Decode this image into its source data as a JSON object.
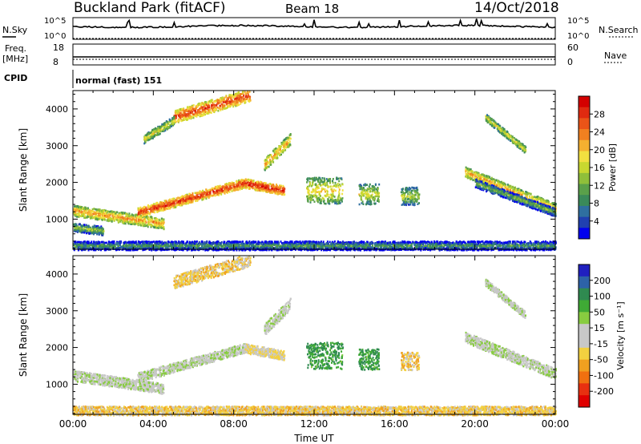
{
  "header": {
    "site": "Buckland Park (fitACF)",
    "beam": "Beam 18",
    "date": "14/Oct/2018"
  },
  "top_panels": {
    "nsky_label": "N.Sky",
    "nsearch_label": "N.Search",
    "noise_ticks": [
      "10^5",
      "10^0"
    ],
    "freq_label_1": "Freq.",
    "freq_label_2": "[MHz]",
    "freq_ticks": [
      "18",
      "8"
    ],
    "nave_label": "Nave",
    "nave_ticks": [
      "60",
      "0"
    ],
    "cpid_label": "CPID",
    "cpid_text": "normal (fast) 151"
  },
  "colorbars": {
    "power": {
      "label": "Power [dB]",
      "ticks": [
        "28",
        "24",
        "20",
        "16",
        "12",
        "8",
        "4"
      ],
      "colors": [
        "#0000ee",
        "#2040b0",
        "#2f6fa0",
        "#3a8a5a",
        "#5aa04a",
        "#8fbf3a",
        "#c8d830",
        "#f2e040",
        "#f5b030",
        "#f08020",
        "#ea5418",
        "#e02a10",
        "#d40000"
      ]
    },
    "velocity": {
      "label": "Velocity [m s⁻¹]",
      "ticks": [
        "200",
        "100",
        "50",
        "15",
        "-15",
        "-50",
        "-100",
        "-200"
      ],
      "colors": [
        "#2020c0",
        "#2d62a8",
        "#2f8a50",
        "#3faa35",
        "#88cc40",
        "#c8c8c8",
        "#c8c8c8",
        "#f2d040",
        "#f0a020",
        "#f07010",
        "#e83010",
        "#e00000"
      ]
    }
  },
  "chart_data": [
    {
      "type": "heatmap",
      "title": "Power",
      "xlabel": "",
      "ylabel": "Slant Range [km]",
      "xlim_ut_hours": [
        0,
        24
      ],
      "ylim_km": [
        180,
        4500
      ],
      "x_tick_labels": [
        "00:00",
        "04:00",
        "08:00",
        "12:00",
        "16:00",
        "20:00",
        "00:00"
      ],
      "y_tick_labels": [
        "1000",
        "2000",
        "3000",
        "4000"
      ],
      "colorscale": "power_db",
      "echo_bands": [
        {
          "t0": 0.0,
          "t1": 4.5,
          "r0": 1250,
          "r1": 900,
          "w": 180,
          "v": 18
        },
        {
          "t0": 0.0,
          "t1": 1.5,
          "r0": 800,
          "r1": 700,
          "w": 150,
          "v": 10
        },
        {
          "t0": 3.2,
          "t1": 8.5,
          "r0": 1200,
          "r1": 2000,
          "w": 160,
          "v": 24
        },
        {
          "t0": 8.5,
          "t1": 10.5,
          "r0": 2000,
          "r1": 1800,
          "w": 160,
          "v": 25
        },
        {
          "t0": 9.5,
          "t1": 10.8,
          "r0": 2500,
          "r1": 3200,
          "w": 200,
          "v": 18
        },
        {
          "t0": 5.0,
          "t1": 8.8,
          "r0": 3800,
          "r1": 4400,
          "w": 220,
          "v": 23
        },
        {
          "t0": 3.5,
          "t1": 5.0,
          "r0": 3200,
          "r1": 3700,
          "w": 150,
          "v": 14
        },
        {
          "t0": 11.6,
          "t1": 13.4,
          "r0": 1800,
          "r1": 1800,
          "w": 450,
          "v": 15
        },
        {
          "t0": 14.2,
          "t1": 15.2,
          "r0": 1700,
          "r1": 1700,
          "w": 350,
          "v": 13
        },
        {
          "t0": 16.3,
          "t1": 17.2,
          "r0": 1650,
          "r1": 1650,
          "w": 300,
          "v": 11
        },
        {
          "t0": 19.5,
          "t1": 24.0,
          "r0": 2300,
          "r1": 1300,
          "w": 180,
          "v": 17
        },
        {
          "t0": 20.0,
          "t1": 24.0,
          "r0": 2000,
          "r1": 1200,
          "w": 140,
          "v": 8
        },
        {
          "t0": 20.5,
          "t1": 22.5,
          "r0": 3800,
          "r1": 2900,
          "w": 120,
          "v": 14
        },
        {
          "t0": 0.0,
          "t1": 24.0,
          "r0": 300,
          "r1": 300,
          "w": 150,
          "v": 6
        }
      ]
    },
    {
      "type": "heatmap",
      "title": "Velocity",
      "xlabel": "Time UT",
      "ylabel": "Slant Range [km]",
      "xlim_ut_hours": [
        0,
        24
      ],
      "ylim_km": [
        180,
        4500
      ],
      "x_tick_labels": [
        "00:00",
        "04:00",
        "08:00",
        "12:00",
        "16:00",
        "20:00",
        "00:00"
      ],
      "y_tick_labels": [
        "1000",
        "2000",
        "3000",
        "4000"
      ],
      "colorscale": "velocity_ms",
      "echo_bands": [
        {
          "t0": 0.0,
          "t1": 4.5,
          "r0": 1250,
          "r1": 900,
          "w": 180,
          "v": 0
        },
        {
          "t0": 3.2,
          "t1": 8.5,
          "r0": 1200,
          "r1": 2000,
          "w": 160,
          "v": 0
        },
        {
          "t0": 8.5,
          "t1": 10.5,
          "r0": 2000,
          "r1": 1800,
          "w": 160,
          "v": -20
        },
        {
          "t0": 9.5,
          "t1": 10.8,
          "r0": 2500,
          "r1": 3200,
          "w": 200,
          "v": 0
        },
        {
          "t0": 5.0,
          "t1": 8.8,
          "r0": 3800,
          "r1": 4400,
          "w": 220,
          "v": -30
        },
        {
          "t0": 11.6,
          "t1": 13.4,
          "r0": 1800,
          "r1": 1800,
          "w": 450,
          "v": 40
        },
        {
          "t0": 14.2,
          "t1": 15.2,
          "r0": 1700,
          "r1": 1700,
          "w": 350,
          "v": 40
        },
        {
          "t0": 16.3,
          "t1": 17.2,
          "r0": 1650,
          "r1": 1650,
          "w": 300,
          "v": -30
        },
        {
          "t0": 19.5,
          "t1": 24.0,
          "r0": 2300,
          "r1": 1300,
          "w": 180,
          "v": 0
        },
        {
          "t0": 20.5,
          "t1": 22.5,
          "r0": 3800,
          "r1": 2900,
          "w": 120,
          "v": 0
        },
        {
          "t0": 0.0,
          "t1": 24.0,
          "r0": 300,
          "r1": 300,
          "w": 150,
          "v": -30
        }
      ]
    }
  ]
}
